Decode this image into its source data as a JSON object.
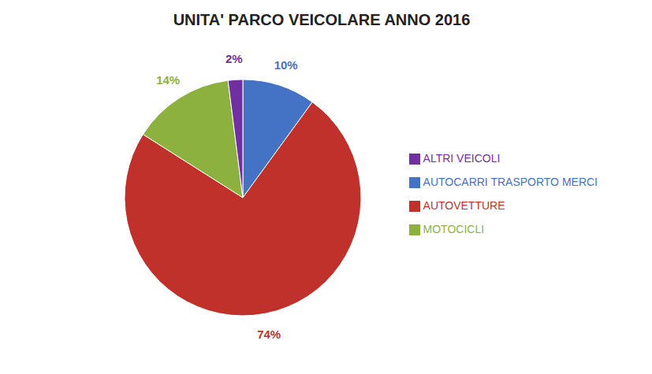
{
  "chart_data": {
    "type": "pie",
    "title": "UNITA' PARCO VEICOLARE ANNO 2016",
    "categories": [
      "AUTOCARRI TRASPORTO MERCI",
      "AUTOVETTURE",
      "MOTOCICLI",
      "ALTRI VEICOLI"
    ],
    "values": [
      10,
      74,
      14,
      2
    ],
    "value_labels": [
      "10%",
      "74%",
      "14%",
      "2%"
    ],
    "colors": [
      "#4472C4",
      "#C0312B",
      "#8DB13F",
      "#7030A0"
    ],
    "data_labels": true,
    "legend": "right"
  }
}
